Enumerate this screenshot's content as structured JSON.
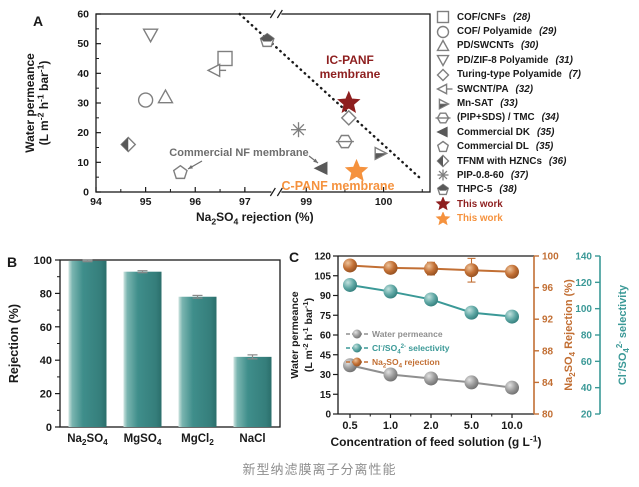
{
  "caption": "新型纳滤膜离子分离性能",
  "colors": {
    "teal": "#3B9997",
    "teal_bar": "#3F8E8B",
    "orange": "#C26F34",
    "gray_series": "#8F8F8F",
    "dark_red": "#8E1F1F",
    "bright_orange": "#F5923E",
    "marker_stroke": "#7f7f7f",
    "marker_dark": "#595959",
    "axis_black": "#1a1a1a",
    "annotation_gray": "#6e6e6e"
  },
  "chart_data": [
    {
      "id": "panel_a",
      "panel_label": "A",
      "type": "scatter",
      "xlabel": "Na~2~SO~4~ rejection (%)",
      "ylabel_lines": [
        "Water permeance",
        "(L m^-2^ h^-1^ bar^-1^)"
      ],
      "ylim": [
        0,
        60
      ],
      "yticks": [
        0,
        10,
        20,
        30,
        40,
        50,
        60
      ],
      "x_axis": {
        "break": true,
        "left_range": [
          94,
          97.5
        ],
        "right_range": [
          98.7,
          100.6
        ],
        "left_ticks": [
          94,
          95,
          96,
          97
        ],
        "right_ticks": [
          99,
          100
        ]
      },
      "points": [
        {
          "series": "COF/CNFs",
          "ref": "28",
          "marker": "square",
          "x": 96.6,
          "y": 45
        },
        {
          "series": "COF/ Polyamide",
          "ref": "29",
          "marker": "circle",
          "x": 95.0,
          "y": 31
        },
        {
          "series": "PD/SWCNTs",
          "ref": "30",
          "marker": "tri-up",
          "x": 95.4,
          "y": 32
        },
        {
          "series": "PD/ZIF-8 Polyamide",
          "ref": "31",
          "marker": "tri-down",
          "x": 95.1,
          "y": 53
        },
        {
          "series": "Turing-type Polyamide",
          "ref": "7",
          "marker": "diamond",
          "x": 99.55,
          "y": 25
        },
        {
          "series": "SWCNT/PA",
          "ref": "32",
          "marker": "tri-left-line",
          "x": 96.4,
          "y": 41
        },
        {
          "series": "Mn-SAT",
          "ref": "33",
          "marker": "tri-right-half",
          "x": 99.95,
          "y": 13
        },
        {
          "series": "(PIP+SDS) / TMC",
          "ref": "34",
          "marker": "hexagon-line",
          "x": 99.5,
          "y": 17
        },
        {
          "series": "Commercial DK",
          "ref": "35",
          "marker": "tri-left-filled",
          "x": 99.2,
          "y": 8
        },
        {
          "series": "Commercial DL",
          "ref": "35",
          "marker": "pentagon",
          "x": 95.7,
          "y": 6.5
        },
        {
          "series": "TFNM with HZNCs",
          "ref": "36",
          "marker": "diamond-half",
          "x": 94.65,
          "y": 16
        },
        {
          "series": "PIP-0.8-60",
          "ref": "37",
          "marker": "asterisk",
          "x": 98.9,
          "y": 21
        },
        {
          "series": "THPC-5",
          "ref": "38",
          "marker": "pentagon-half",
          "x": 97.45,
          "y": 51
        },
        {
          "series": "This work (IC-PANF)",
          "ref": "",
          "marker": "star",
          "color": "#8E1F1F",
          "x": 99.55,
          "y": 30
        },
        {
          "series": "This work (C-PANF)",
          "ref": "",
          "marker": "star",
          "color": "#F5923E",
          "x": 99.65,
          "y": 7
        }
      ],
      "tradeoff_line": {
        "style": "dotted",
        "from_frac": [
          0.43,
          0.0
        ],
        "to_frac": [
          0.975,
          0.93
        ]
      },
      "annotations": [
        {
          "lines": [
            "IC-PANF",
            "membrane"
          ],
          "color": "#8E1F1F",
          "px": [
            332,
            64
          ],
          "size": 12
        },
        {
          "lines": [
            "C-PANF membrane"
          ],
          "color": "#F5923E",
          "px": [
            320,
            190
          ],
          "size": 12.5
        },
        {
          "lines": [
            "Commercial  NF membrane"
          ],
          "color": "#6e6e6e",
          "px": [
            221,
            156
          ],
          "size": 11,
          "arrows": [
            [
              [
                184,
                161
              ],
              [
                170,
                169
              ]
            ],
            [
              [
                291,
                156
              ],
              [
                300,
                163
              ]
            ]
          ]
        }
      ],
      "legend": [
        {
          "marker": "square",
          "name": "COF/CNFs",
          "ref": "28"
        },
        {
          "marker": "circle",
          "name": "COF/ Polyamide",
          "ref": "29"
        },
        {
          "marker": "tri-up",
          "name": "PD/SWCNTs",
          "ref": "30"
        },
        {
          "marker": "tri-down",
          "name": "PD/ZIF-8 Polyamide",
          "ref": "31"
        },
        {
          "marker": "diamond",
          "name": "Turing-type Polyamide",
          "ref": "7"
        },
        {
          "marker": "tri-left-line",
          "name": "SWCNT/PA",
          "ref": "32"
        },
        {
          "marker": "tri-right-half",
          "name": "Mn-SAT",
          "ref": "33"
        },
        {
          "marker": "hexagon-line",
          "name": "(PIP+SDS) / TMC",
          "ref": "34"
        },
        {
          "marker": "tri-left-filled",
          "name": "Commercial DK",
          "ref": "35"
        },
        {
          "marker": "pentagon",
          "name": "Commercial DL",
          "ref": "35"
        },
        {
          "marker": "diamond-half",
          "name": "TFNM with HZNCs",
          "ref": "36"
        },
        {
          "marker": "asterisk",
          "name": "PIP-0.8-60",
          "ref": "37"
        },
        {
          "marker": "pentagon-half",
          "name": "THPC-5",
          "ref": "38"
        },
        {
          "marker": "star",
          "color": "#8E1F1F",
          "name": "This work",
          "ref": ""
        },
        {
          "marker": "star",
          "color": "#F5923E",
          "name": "This work",
          "ref": ""
        }
      ]
    },
    {
      "id": "panel_b",
      "panel_label": "B",
      "type": "bar",
      "ylabel": "Rejection (%)",
      "categories": [
        "Na~2~SO~4~",
        "MgSO~4~",
        "MgCl~2~",
        "NaCl"
      ],
      "values": [
        99.5,
        93,
        78,
        42
      ],
      "errors": [
        0.5,
        0.6,
        0.8,
        1.2
      ],
      "ylim": [
        0,
        100
      ],
      "yticks": [
        0,
        20,
        40,
        60,
        80,
        100
      ],
      "bar_color": "#3F8E8B"
    },
    {
      "id": "panel_c",
      "panel_label": "C",
      "type": "line",
      "xlabel": "Concentration of feed solution (g L^-1^)",
      "categories": [
        "0.5",
        "1.0",
        "2.0",
        "5.0",
        "10.0"
      ],
      "left_axis": {
        "label_lines": [
          "Water permeance",
          "(L m^-2^ h^-1^ bar^-1^)"
        ],
        "range": [
          0,
          120
        ],
        "ticks": [
          0,
          15,
          30,
          45,
          60,
          75,
          90,
          105,
          120
        ]
      },
      "right_axis_1": {
        "label": "Na~2~SO~4~ Rejection (%)",
        "range": [
          80,
          100
        ],
        "ticks": [
          80,
          84,
          88,
          92,
          96,
          100
        ],
        "color": "#C26F34"
      },
      "right_axis_2": {
        "label": "Cl^-^/SO~4~^2-^ selectivity",
        "range": [
          20,
          140
        ],
        "ticks": [
          20,
          40,
          60,
          80,
          100,
          120,
          140
        ],
        "color": "#3B9997"
      },
      "series": [
        {
          "name": "Water permeance",
          "axis": "left",
          "color": "#8F8F8F",
          "values": [
            37,
            30,
            27,
            24,
            20
          ]
        },
        {
          "name": "Cl^-^/SO~4~^2-^ selectivity",
          "axis": "right2",
          "color": "#3B9997",
          "values": [
            118,
            113,
            107,
            97,
            94
          ]
        },
        {
          "name": "Na~2~SO~4~ rejection",
          "axis": "right1",
          "color": "#C26F34",
          "values": [
            98.8,
            98.5,
            98.4,
            98.2,
            98.0
          ],
          "errors": [
            0.3,
            0.3,
            0.8,
            1.5,
            0.3
          ]
        }
      ],
      "legend_position": "middle-left"
    }
  ]
}
